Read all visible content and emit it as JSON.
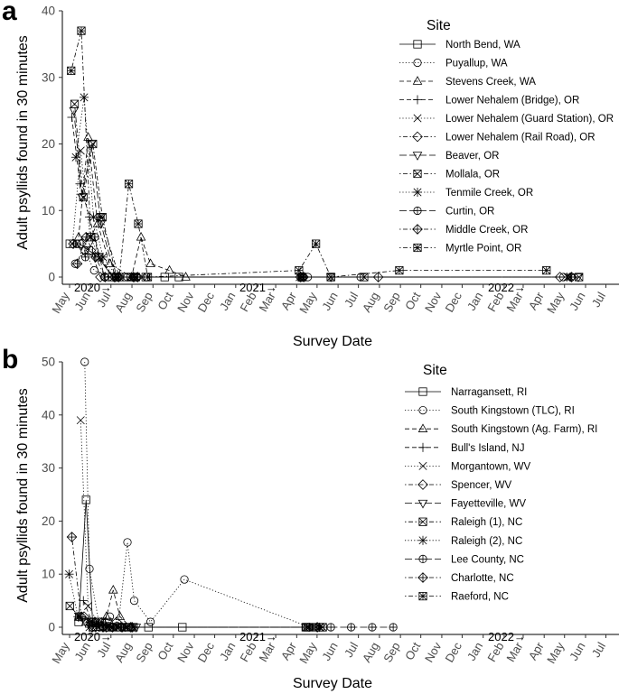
{
  "panels": [
    {
      "letter": "a",
      "ylabel": "Adult psyllids found in 30 minutes",
      "xlabel": "Survey Date",
      "legend_title": "Site",
      "year_markers": [
        "2020→",
        "2021→",
        "2022→"
      ]
    },
    {
      "letter": "b",
      "ylabel": "Adult psyllids found in 30 minutes",
      "xlabel": "Survey Date",
      "legend_title": "Site",
      "year_markers": [
        "2020→",
        "2021→",
        "2022→"
      ]
    }
  ],
  "chart_data": [
    {
      "type": "line",
      "ylabel": "Adult psyllids found in 30 minutes",
      "xlabel": "Survey Date",
      "x_ticks": [
        "May",
        "Jun",
        "Jul",
        "Aug",
        "Sep",
        "Oct",
        "Nov",
        "Dec",
        "Jan",
        "Feb",
        "Mar",
        "Apr",
        "May",
        "Jun",
        "Jul",
        "Aug",
        "Sep",
        "Oct",
        "Nov",
        "Dec",
        "Jan",
        "Feb",
        "Mar",
        "Apr",
        "May",
        "Jun",
        "Jul"
      ],
      "y_ticks": [
        0,
        10,
        20,
        30,
        40
      ],
      "ylim": [
        0,
        40
      ],
      "xlim": [
        "2020-05-01",
        "2022-07-31"
      ],
      "grid": false,
      "legend_position": "right",
      "series": [
        {
          "name": "North Bend, WA",
          "marker": "square",
          "dash": "solid",
          "x": [
            "2020-05-12",
            "2020-05-26",
            "2020-06-09",
            "2020-06-23",
            "2020-07-14",
            "2020-08-04",
            "2020-09-01",
            "2020-09-29",
            "2020-10-20",
            "2021-04-20",
            "2021-06-01"
          ],
          "y": [
            5,
            5,
            4,
            3,
            0,
            0,
            0,
            0,
            0,
            0,
            0
          ]
        },
        {
          "name": "Puyallup, WA",
          "marker": "circle",
          "dash": "dotted",
          "x": [
            "2020-05-20",
            "2020-06-03",
            "2020-06-17",
            "2020-07-08",
            "2020-08-05",
            "2020-09-02",
            "2021-04-28",
            "2021-07-15",
            "2022-05-10"
          ],
          "y": [
            2,
            4,
            1,
            0,
            0,
            0,
            0,
            0,
            0
          ]
        },
        {
          "name": "Stevens Creek, WA",
          "marker": "triangle",
          "dash": "dashed",
          "x": [
            "2020-05-25",
            "2020-06-08",
            "2020-06-22",
            "2020-07-10",
            "2020-08-11",
            "2020-08-25",
            "2020-09-08",
            "2020-10-06",
            "2020-10-30"
          ],
          "y": [
            6,
            21,
            8,
            2,
            0,
            6,
            2,
            1,
            0
          ]
        },
        {
          "name": "Lower Nehalem (Bridge), OR",
          "marker": "plus",
          "dash": "dashed",
          "x": [
            "2020-05-15",
            "2020-05-27",
            "2020-06-10",
            "2020-06-24",
            "2020-07-15",
            "2020-08-12",
            "2021-04-15",
            "2022-05-15"
          ],
          "y": [
            24,
            14,
            9,
            3,
            0,
            0,
            0,
            0
          ]
        },
        {
          "name": "Lower Nehalem (Guard Station), OR",
          "marker": "x",
          "dash": "dotted",
          "x": [
            "2020-05-16",
            "2020-05-28",
            "2020-06-11",
            "2020-06-25",
            "2020-07-16",
            "2020-08-13",
            "2021-04-16",
            "2022-05-16"
          ],
          "y": [
            5,
            19,
            6,
            3,
            0,
            0,
            0,
            0
          ]
        },
        {
          "name": "Lower Nehalem (Rail Road), OR",
          "marker": "diamond",
          "dash": "dotdash",
          "x": [
            "2020-05-17",
            "2020-05-29",
            "2020-06-12",
            "2020-06-26",
            "2020-07-17",
            "2020-08-14",
            "2021-04-17",
            "2022-05-05"
          ],
          "y": [
            5,
            5,
            4,
            0,
            0,
            0,
            0,
            0
          ]
        },
        {
          "name": "Beaver, OR",
          "marker": "triangle-down",
          "dash": "longdash",
          "x": [
            "2020-05-18",
            "2020-05-30",
            "2020-06-13",
            "2020-06-27",
            "2020-07-18",
            "2020-08-15",
            "2021-04-18",
            "2021-06-01",
            "2022-06-01"
          ],
          "y": [
            25,
            12,
            20,
            8,
            0,
            0,
            0,
            0,
            0
          ]
        },
        {
          "name": "Mollala, OR",
          "marker": "square-x",
          "dash": "dotdash",
          "x": [
            "2020-05-19",
            "2020-06-01",
            "2020-06-15",
            "2020-06-29",
            "2020-07-20",
            "2020-08-10",
            "2020-08-17",
            "2021-04-19",
            "2021-07-20",
            "2022-06-02"
          ],
          "y": [
            26,
            12,
            20,
            9,
            0,
            0,
            0,
            0,
            0,
            0
          ]
        },
        {
          "name": "Tenmile Creek, OR",
          "marker": "asterisk",
          "dash": "dotted",
          "x": [
            "2020-05-21",
            "2020-06-02",
            "2020-06-16",
            "2020-06-30",
            "2020-07-21",
            "2020-08-18",
            "2021-04-20",
            "2022-05-20"
          ],
          "y": [
            18,
            27,
            9,
            3,
            0,
            0,
            0,
            0
          ]
        },
        {
          "name": "Curtin, OR",
          "marker": "circle-plus",
          "dash": "longdash",
          "x": [
            "2020-05-22",
            "2020-06-04",
            "2020-06-18",
            "2020-07-02",
            "2020-07-22",
            "2020-08-19",
            "2021-04-21",
            "2022-05-21"
          ],
          "y": [
            5,
            3,
            6,
            0,
            0,
            0,
            0,
            0
          ]
        },
        {
          "name": "Middle Creek, OR",
          "marker": "diamond-plus",
          "dash": "dotdash",
          "x": [
            "2020-05-23",
            "2020-06-05",
            "2020-06-19",
            "2020-07-03",
            "2020-07-23",
            "2020-08-20",
            "2021-04-22",
            "2021-08-10",
            "2022-05-22"
          ],
          "y": [
            2,
            6,
            3,
            0,
            0,
            0,
            0,
            0,
            0
          ]
        },
        {
          "name": "Myrtle Point, OR",
          "marker": "square-star",
          "dash": "dotdash",
          "x": [
            "2020-05-14",
            "2020-05-29",
            "2020-06-12",
            "2020-06-26",
            "2020-07-24",
            "2020-08-07",
            "2020-08-21",
            "2020-09-04",
            "2021-04-15",
            "2021-05-10",
            "2021-06-01",
            "2021-09-10",
            "2022-04-15"
          ],
          "y": [
            31,
            37,
            6,
            9,
            0,
            14,
            8,
            0,
            1,
            5,
            0,
            1,
            1
          ]
        }
      ]
    },
    {
      "type": "line",
      "ylabel": "Adult psyllids found in 30 minutes",
      "xlabel": "Survey Date",
      "x_ticks": [
        "May",
        "Jun",
        "Jul",
        "Aug",
        "Sep",
        "Oct",
        "Nov",
        "Dec",
        "Jan",
        "Feb",
        "Mar",
        "Apr",
        "May",
        "Jun",
        "Jul",
        "Aug",
        "Sep",
        "Oct",
        "Nov",
        "Dec",
        "Jan",
        "Feb",
        "Mar",
        "Apr",
        "May",
        "Jun",
        "Jul"
      ],
      "y_ticks": [
        0,
        10,
        20,
        30,
        40,
        50
      ],
      "ylim": [
        0,
        50
      ],
      "xlim": [
        "2020-05-01",
        "2022-07-31"
      ],
      "grid": false,
      "legend_position": "right",
      "series": [
        {
          "name": "Narragansett, RI",
          "marker": "square",
          "dash": "solid",
          "x": [
            "2020-05-25",
            "2020-06-05",
            "2020-06-15",
            "2020-06-25",
            "2020-07-10",
            "2020-08-05",
            "2020-09-05",
            "2020-10-25",
            "2021-04-25"
          ],
          "y": [
            1,
            24,
            0,
            1,
            0,
            0,
            0,
            0,
            0
          ]
        },
        {
          "name": "South Kingstown (TLC), RI",
          "marker": "circle",
          "dash": "dotted",
          "x": [
            "2020-06-03",
            "2020-06-10",
            "2020-06-25",
            "2020-07-10",
            "2020-07-22",
            "2020-08-05",
            "2020-08-15",
            "2020-09-08",
            "2020-10-28",
            "2021-05-01"
          ],
          "y": [
            50,
            11,
            0,
            2,
            0,
            16,
            5,
            1,
            9,
            0
          ]
        },
        {
          "name": "South Kingstown (Ag. Farm), RI",
          "marker": "triangle",
          "dash": "dashed",
          "x": [
            "2020-06-05",
            "2020-06-20",
            "2020-07-05",
            "2020-07-15",
            "2020-07-25",
            "2020-08-10"
          ],
          "y": [
            1,
            0,
            2,
            7,
            2,
            0
          ]
        },
        {
          "name": "Bull's Island, NJ",
          "marker": "plus",
          "dash": "dashed",
          "x": [
            "2020-06-01",
            "2020-06-14",
            "2020-06-28",
            "2020-07-12",
            "2020-07-26",
            "2020-08-09"
          ],
          "y": [
            5,
            1,
            1,
            0,
            0,
            0
          ]
        },
        {
          "name": "Morgantown, WV",
          "marker": "x",
          "dash": "dotted",
          "x": [
            "2020-05-28",
            "2020-06-08",
            "2020-06-22",
            "2020-07-06",
            "2020-07-20"
          ],
          "y": [
            39,
            4,
            1,
            0,
            0
          ]
        },
        {
          "name": "Spencer, WV",
          "marker": "diamond",
          "dash": "dotdash",
          "x": [
            "2020-06-02",
            "2020-06-18",
            "2020-07-05",
            "2020-07-20",
            "2020-08-10"
          ],
          "y": [
            2,
            1,
            0,
            1,
            0
          ]
        },
        {
          "name": "Fayetteville, WV",
          "marker": "triangle-down",
          "dash": "longdash",
          "x": [
            "2020-06-04",
            "2020-06-19",
            "2020-07-08",
            "2020-07-28",
            "2020-08-18"
          ],
          "y": [
            1,
            0,
            1,
            0,
            0
          ]
        },
        {
          "name": "Raleigh (1), NC",
          "marker": "square-x",
          "dash": "dotdash",
          "x": [
            "2020-05-12",
            "2020-05-26",
            "2020-06-12",
            "2020-06-28",
            "2020-07-15",
            "2020-08-05",
            "2021-04-28",
            "2021-05-10",
            "2021-05-20"
          ],
          "y": [
            4,
            2,
            1,
            1,
            0,
            0,
            0,
            0,
            0
          ]
        },
        {
          "name": "Raleigh (2), NC",
          "marker": "asterisk",
          "dash": "dotted",
          "x": [
            "2020-05-11",
            "2020-05-24",
            "2020-06-10",
            "2020-06-24",
            "2020-07-12",
            "2020-08-02",
            "2021-04-30",
            "2021-05-15"
          ],
          "y": [
            10,
            2,
            0,
            0,
            0,
            0,
            0,
            0
          ]
        },
        {
          "name": "Lee County, NC",
          "marker": "circle-plus",
          "dash": "longdash",
          "x": [
            "2020-06-15",
            "2020-07-01",
            "2020-07-15",
            "2020-08-01",
            "2021-05-05",
            "2021-06-01",
            "2021-07-01",
            "2021-08-01",
            "2021-09-01"
          ],
          "y": [
            1,
            0,
            0,
            0,
            0,
            0,
            0,
            0,
            0
          ]
        },
        {
          "name": "Charlotte, NC",
          "marker": "diamond-plus",
          "dash": "dotdash",
          "x": [
            "2020-05-15",
            "2020-05-29",
            "2020-06-14",
            "2020-06-30",
            "2020-07-14",
            "2020-07-28",
            "2020-08-12",
            "2021-05-12"
          ],
          "y": [
            17,
            2,
            0,
            0,
            0,
            0,
            0,
            0
          ]
        },
        {
          "name": "Raeford, NC",
          "marker": "square-star",
          "dash": "dotdash",
          "x": [
            "2020-06-14",
            "2020-07-04",
            "2020-07-24",
            "2020-08-14",
            "2021-04-26",
            "2021-05-16"
          ],
          "y": [
            1,
            0,
            0,
            0,
            0,
            0
          ]
        }
      ]
    }
  ]
}
